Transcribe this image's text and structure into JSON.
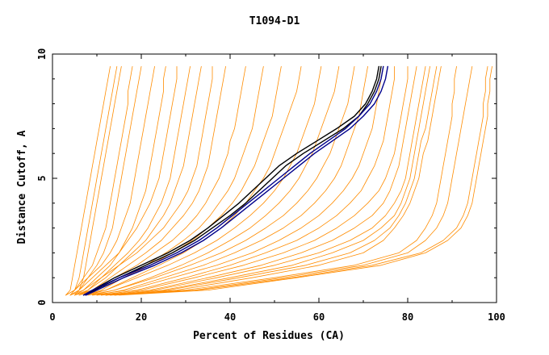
{
  "chart_data": {
    "type": "line",
    "title": "T1094-D1",
    "xlabel": "Percent of Residues (CA)",
    "ylabel": "Distance Cutoff, A",
    "xlim": [
      0,
      100
    ],
    "ylim": [
      0,
      10
    ],
    "x_ticks": [
      {
        "value": 0,
        "label": "0"
      },
      {
        "value": 20,
        "label": "20"
      },
      {
        "value": 40,
        "label": "40"
      },
      {
        "value": 60,
        "label": "60"
      },
      {
        "value": 80,
        "label": "80"
      },
      {
        "value": 100,
        "label": "100"
      }
    ],
    "y_ticks": [
      {
        "value": 0,
        "label": "0"
      },
      {
        "value": 5,
        "label": "5"
      },
      {
        "value": 10,
        "label": "10"
      }
    ],
    "grid": false,
    "legend": "none",
    "colors": {
      "orange": "#ff8c00",
      "black": "#000000",
      "blue": "#00008b"
    },
    "y_levels": [
      0.3,
      0.5,
      1.0,
      1.5,
      2.0,
      2.5,
      3.0,
      3.5,
      4.0,
      4.5,
      5.0,
      5.5,
      6.0,
      6.5,
      7.0,
      7.5,
      8.0,
      8.5,
      9.0,
      9.5
    ],
    "series": [
      {
        "color": "orange",
        "x": [
          3,
          4,
          4.5,
          5,
          5.5,
          6,
          6.5,
          7,
          7.5,
          8,
          8.5,
          9,
          9.5,
          10,
          10.5,
          11,
          11.5,
          12,
          12.5,
          13
        ]
      },
      {
        "color": "orange",
        "x": [
          4,
          5,
          6,
          6.5,
          7,
          7.5,
          8,
          8.5,
          9,
          9.5,
          10,
          10.5,
          11,
          11.5,
          12,
          12.5,
          13,
          13.5,
          14,
          14.5
        ]
      },
      {
        "color": "orange",
        "x": [
          5,
          6,
          7,
          7.5,
          8,
          8.5,
          9,
          9.5,
          10,
          10.5,
          11,
          11.5,
          12,
          12.5,
          13,
          13.5,
          14,
          14.5,
          15,
          15.5
        ]
      },
      {
        "color": "orange",
        "x": [
          3,
          5,
          7,
          9,
          10,
          11,
          12,
          12.5,
          13,
          13.5,
          14,
          14.5,
          15,
          15.5,
          16,
          16.5,
          17,
          17,
          17.5,
          18
        ]
      },
      {
        "color": "orange",
        "x": [
          4,
          6,
          8,
          10,
          11.5,
          12.5,
          13.5,
          14,
          14.5,
          15,
          15.5,
          16,
          16.5,
          17,
          17.5,
          18,
          18.5,
          19,
          19.5,
          20
        ]
      },
      {
        "color": "orange",
        "x": [
          3,
          5,
          8,
          11,
          13,
          14.5,
          15.5,
          16.5,
          17.5,
          18,
          18.5,
          19,
          19.5,
          20,
          20.5,
          21,
          21.5,
          22,
          22.5,
          23
        ]
      },
      {
        "color": "orange",
        "x": [
          5,
          7,
          10,
          13,
          15,
          16.5,
          18,
          19,
          20,
          21,
          21.5,
          22,
          22.5,
          23,
          23.5,
          24,
          24.5,
          25,
          25,
          25.5
        ]
      },
      {
        "color": "orange",
        "x": [
          4,
          6,
          9,
          12,
          15,
          17,
          19,
          20.5,
          22,
          23,
          24,
          24.5,
          25,
          25.5,
          26,
          26.5,
          27,
          27.5,
          28,
          28
        ]
      },
      {
        "color": "orange",
        "x": [
          6,
          8,
          11,
          14,
          17,
          19.5,
          21.5,
          23,
          24.5,
          25.5,
          26.5,
          27,
          27.5,
          28,
          28.5,
          29,
          29.5,
          30,
          30.5,
          31
        ]
      },
      {
        "color": "orange",
        "x": [
          5,
          8,
          12,
          15,
          18,
          21,
          23,
          25,
          26.5,
          27.5,
          28.5,
          29.5,
          30,
          30.5,
          31,
          31.5,
          32,
          32.5,
          33,
          33.5
        ]
      },
      {
        "color": "orange",
        "x": [
          4,
          7,
          11,
          15,
          19,
          22,
          25,
          27,
          29,
          30.5,
          31.5,
          32.5,
          33,
          33.5,
          34,
          34.5,
          35,
          35.5,
          36,
          36
        ]
      },
      {
        "color": "orange",
        "x": [
          6,
          9,
          13,
          17,
          21,
          24.5,
          27,
          29.5,
          31.5,
          33,
          34,
          35,
          35.5,
          36,
          36.5,
          37,
          37.5,
          38,
          38.5,
          39
        ]
      },
      {
        "color": "orange",
        "x": [
          5,
          9,
          14,
          19,
          23,
          27,
          30,
          32.5,
          34.5,
          36,
          37.5,
          38.5,
          39.5,
          40,
          41,
          41.5,
          42,
          42.5,
          43,
          43.5
        ]
      },
      {
        "color": "orange",
        "x": [
          7,
          11,
          16,
          21,
          25.5,
          29.5,
          33,
          35.5,
          37.5,
          39.5,
          41,
          42,
          43,
          44,
          45,
          45.5,
          46,
          46.5,
          47,
          47.5
        ]
      },
      {
        "color": "orange",
        "x": [
          6,
          10,
          16,
          22,
          27,
          31.5,
          35,
          38,
          40.5,
          42.5,
          44,
          45.5,
          46.5,
          47.5,
          48.5,
          49.5,
          50,
          50.5,
          51,
          51.5
        ]
      },
      {
        "color": "orange",
        "x": [
          8,
          12,
          18,
          24,
          29.5,
          34,
          38,
          41,
          43.5,
          45.5,
          47.5,
          49,
          50,
          51,
          52,
          53,
          54,
          55,
          55.5,
          56
        ]
      },
      {
        "color": "orange",
        "x": [
          7,
          12,
          19,
          26,
          32,
          37,
          41,
          44.5,
          47.5,
          50,
          52,
          53.5,
          55,
          56,
          57,
          58,
          59,
          59.5,
          60,
          60.5
        ]
      },
      {
        "color": "orange",
        "x": [
          9,
          14,
          22,
          29,
          35,
          40,
          44.5,
          48,
          51,
          53.5,
          55.5,
          57,
          58.5,
          59.5,
          60.5,
          61.5,
          62.5,
          63.5,
          64,
          64.5
        ]
      },
      {
        "color": "orange",
        "x": [
          8,
          14,
          23,
          31,
          38,
          43.5,
          48,
          52,
          55,
          57.5,
          59.5,
          61,
          62.5,
          63.5,
          64.5,
          65.5,
          66.5,
          67,
          67.5,
          68
        ]
      },
      {
        "color": "orange",
        "x": [
          10,
          16,
          25,
          34,
          41,
          47,
          52,
          56,
          59,
          61.5,
          63.5,
          65,
          66,
          67,
          68,
          69,
          69.5,
          70,
          70.5,
          71
        ]
      },
      {
        "color": "orange",
        "x": [
          9,
          17,
          27,
          37,
          45,
          51,
          56,
          60,
          63,
          65.5,
          67.5,
          69,
          70,
          71,
          72,
          72.5,
          73,
          73.5,
          74,
          74.5
        ]
      },
      {
        "color": "orange",
        "x": [
          11,
          19,
          30,
          40,
          48,
          55,
          60,
          64,
          67,
          69.5,
          71,
          72.5,
          73.5,
          74.5,
          75,
          75.5,
          76,
          76.5,
          77,
          77
        ]
      },
      {
        "color": "orange",
        "x": [
          10,
          20,
          32,
          43,
          52,
          59,
          64,
          68,
          71,
          73.5,
          75,
          76,
          77,
          77.5,
          78,
          78.5,
          79,
          79.5,
          80,
          80
        ]
      },
      {
        "color": "orange",
        "x": [
          12,
          22,
          35,
          47,
          56,
          63,
          68,
          72,
          74.5,
          76,
          77,
          78,
          78.5,
          79,
          79.5,
          80,
          80.5,
          81,
          81.5,
          82
        ]
      },
      {
        "color": "orange",
        "x": [
          11,
          23,
          37,
          50,
          60,
          67,
          72,
          75,
          77,
          78.5,
          79.5,
          80,
          80.5,
          81,
          81.5,
          82,
          82.5,
          83,
          83.5,
          84
        ]
      },
      {
        "color": "orange",
        "x": [
          13,
          25,
          40,
          54,
          63,
          70,
          74,
          77,
          78.5,
          79.5,
          80.5,
          81,
          81.5,
          82,
          82.5,
          83,
          83.5,
          84,
          84.5,
          85
        ]
      },
      {
        "color": "orange",
        "x": [
          12,
          26,
          42,
          57,
          67,
          72.5,
          76,
          78,
          79.5,
          80.5,
          81.5,
          82,
          82.5,
          83,
          84,
          84.5,
          85,
          85.5,
          86,
          86.5
        ]
      },
      {
        "color": "orange",
        "x": [
          14,
          28,
          45,
          60,
          70,
          74.5,
          77,
          79,
          80.5,
          81.5,
          82.5,
          83,
          83.5,
          84.5,
          85,
          85.5,
          86,
          86.5,
          87,
          87.5
        ]
      },
      {
        "color": "orange",
        "x": [
          12,
          30,
          50,
          68,
          78,
          82,
          84,
          85.5,
          86.5,
          87,
          87.5,
          88,
          88.5,
          89,
          89.5,
          90,
          90,
          90.5,
          90.5,
          91
        ]
      },
      {
        "color": "orange",
        "x": [
          14,
          32,
          52,
          70,
          80,
          84,
          86.5,
          88,
          89,
          89.5,
          90,
          90.5,
          91,
          91.5,
          92,
          92.5,
          93,
          93.5,
          94,
          94.5
        ]
      },
      {
        "color": "orange",
        "x": [
          13,
          33,
          54,
          72,
          83,
          88,
          91,
          92.5,
          93.5,
          94,
          94.5,
          95,
          95.5,
          96,
          96.5,
          97,
          97,
          97.5,
          97.5,
          98
        ]
      },
      {
        "color": "orange",
        "x": [
          15,
          35,
          55,
          74,
          84,
          89,
          92,
          93.5,
          94.5,
          95,
          95.5,
          96,
          96.5,
          97,
          97.5,
          98,
          98,
          98.5,
          98.5,
          99
        ]
      },
      {
        "color": "black",
        "x": [
          7,
          9,
          14,
          20,
          26,
          31,
          35,
          38.5,
          42,
          45,
          48,
          51,
          55,
          59.5,
          64,
          68,
          70.5,
          72,
          73,
          73.5
        ]
      },
      {
        "color": "black",
        "x": [
          7.5,
          9.5,
          15,
          21,
          27,
          32,
          36,
          40,
          43.5,
          46.5,
          49.5,
          52.5,
          56.5,
          61,
          65.5,
          69,
          71,
          72.5,
          73.5,
          74
        ]
      },
      {
        "color": "blue",
        "x": [
          7,
          9,
          15,
          22,
          28,
          33,
          37,
          40.5,
          44,
          47.5,
          51,
          54.5,
          58,
          62,
          66,
          69,
          71.5,
          73,
          74,
          74.5
        ]
      },
      {
        "color": "blue",
        "x": [
          7.5,
          10,
          16,
          23,
          29,
          34,
          38,
          41.5,
          45,
          48.5,
          52,
          55.5,
          59,
          63,
          67,
          70,
          72.5,
          74,
          75,
          75.5
        ]
      }
    ]
  }
}
